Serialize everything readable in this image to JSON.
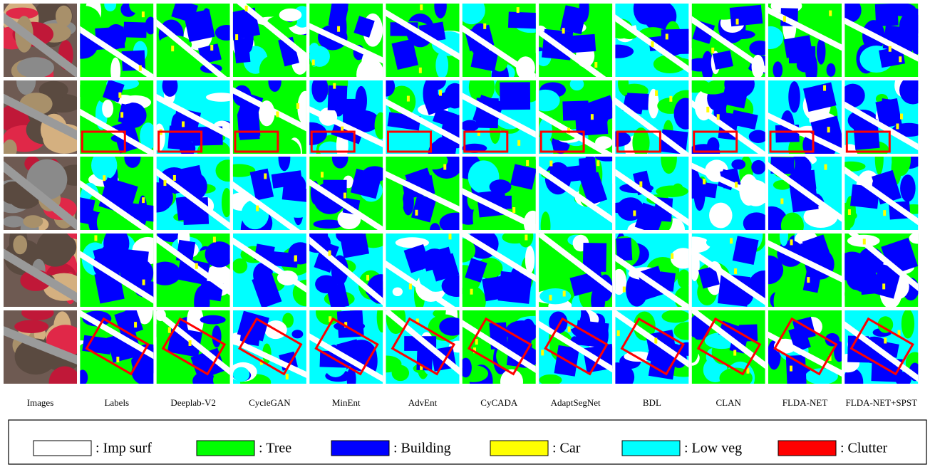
{
  "columns": [
    "Images",
    "Labels",
    "Deeplab-V2",
    "CycleGAN",
    "MinEnt",
    "AdvEnt",
    "CyCADA",
    "AdaptSegNet",
    "BDL",
    "CLAN",
    "FLDA-NET",
    "FLDA-NET+SPST"
  ],
  "legend": [
    {
      "label": ": Imp surf",
      "color": "#ffffff"
    },
    {
      "label": ": Tree",
      "color": "#00ff00"
    },
    {
      "label": ": Building",
      "color": "#0000ff"
    },
    {
      "label": ": Car",
      "color": "#ffff00"
    },
    {
      "label": ": Low veg",
      "color": "#00ffff"
    },
    {
      "label": ": Clutter",
      "color": "#ff0000"
    }
  ]
}
